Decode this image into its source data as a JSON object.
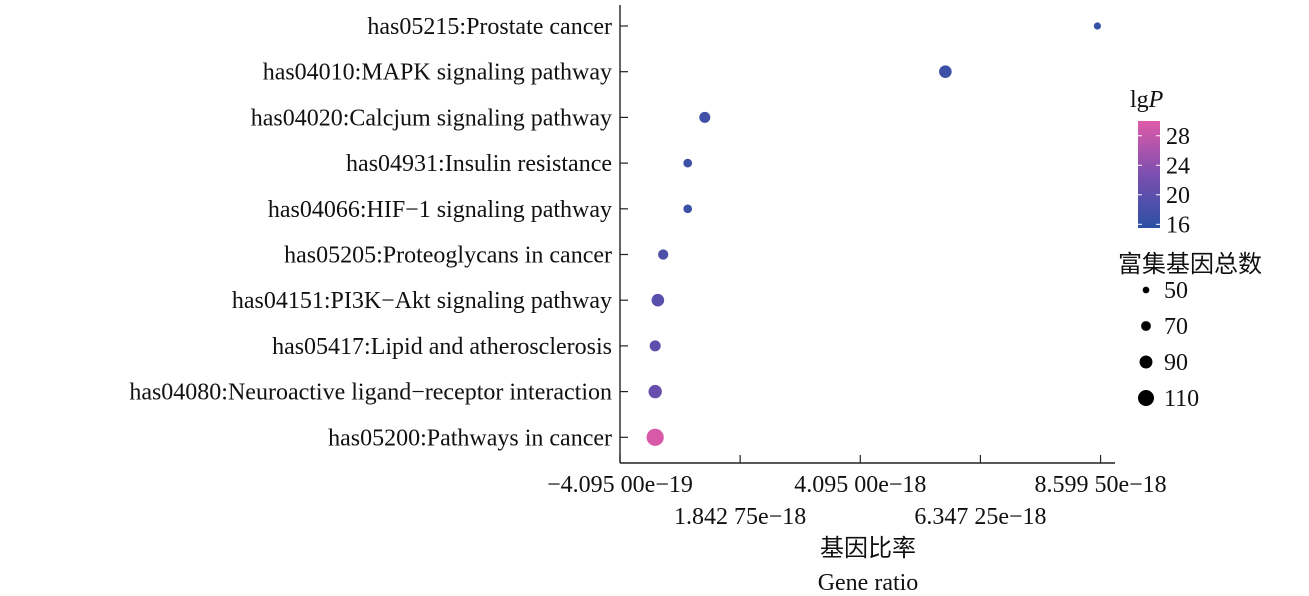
{
  "chart_data": {
    "type": "scatter",
    "title": "",
    "categories": [
      "has05215:Prostate cancer",
      "has04010:MAPK signaling pathway",
      "has04020:Calcjum signaling pathway",
      "has04931:Insulin resistance",
      "has04066:HIF−1 signaling pathway",
      "has05205:Proteoglycans in cancer",
      "has04151:PI3K−Akt signaling pathway",
      "has05417:Lipid and atherosclerosis",
      "has04080:Neuroactive ligand−receptor interaction",
      "has05200:Pathways in cancer"
    ],
    "points": [
      {
        "gene_ratio": 8.54e-18,
        "lgP": 16.5,
        "count": 45
      },
      {
        "gene_ratio": 5.69e-18,
        "lgP": 17.0,
        "count": 80
      },
      {
        "gene_ratio": 1.18e-18,
        "lgP": 17.5,
        "count": 70
      },
      {
        "gene_ratio": 8.6e-19,
        "lgP": 17.0,
        "count": 55
      },
      {
        "gene_ratio": 8.6e-19,
        "lgP": 17.0,
        "count": 55
      },
      {
        "gene_ratio": 4e-19,
        "lgP": 18.5,
        "count": 65
      },
      {
        "gene_ratio": 3e-19,
        "lgP": 19.5,
        "count": 80
      },
      {
        "gene_ratio": 2.5e-19,
        "lgP": 20.0,
        "count": 70
      },
      {
        "gene_ratio": 2.5e-19,
        "lgP": 21.0,
        "count": 85
      },
      {
        "gene_ratio": 2.5e-19,
        "lgP": 29.5,
        "count": 110
      }
    ],
    "xlim": [
      -4.095e-19,
      8.87e-18
    ],
    "x_ticks": [
      -4.095e-19,
      1.84275e-18,
      4.095e-18,
      6.34725e-18,
      8.5995e-18
    ],
    "x_tick_labels": [
      "−4.095 00e−19",
      "1.842 75e−18",
      "4.095 00e−18",
      "6.347 25e−18",
      "8.599 50e−18"
    ],
    "xlabel_cn": "基因比率",
    "xlabel_en": "Gene ratio",
    "colorbar": {
      "title_prefix": "lg",
      "title_italic": "P",
      "range": [
        15.5,
        30
      ],
      "ticks": [
        16,
        20,
        24,
        28
      ],
      "tick_labels": [
        "16",
        "20",
        "24",
        "28"
      ],
      "color_low": "#2b50a4",
      "color_high": "#e05aa8"
    },
    "size_legend": {
      "title": "富集基因总数",
      "values": [
        50,
        70,
        90,
        110
      ],
      "labels": [
        "50",
        "70",
        "90",
        "110"
      ]
    }
  }
}
